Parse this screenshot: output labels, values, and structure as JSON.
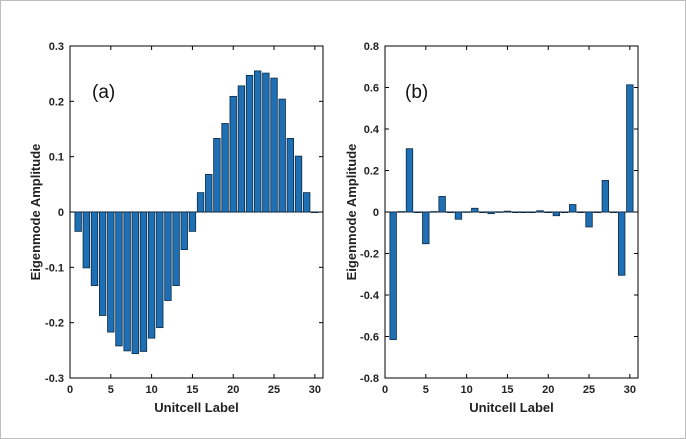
{
  "chart_data": [
    {
      "type": "bar",
      "panel_label": "(a)",
      "xlabel": "Unitcell Label",
      "ylabel": "Eigenmode Amplitude",
      "xlim": [
        0,
        31
      ],
      "ylim": [
        -0.3,
        0.3
      ],
      "xticks": [
        "0",
        "5",
        "10",
        "15",
        "20",
        "25",
        "30"
      ],
      "yticks": [
        "-0.3",
        "-0.2",
        "-0.1",
        "0",
        "0.1",
        "0.2",
        "0.3"
      ],
      "bar_color": "#1f6fb5",
      "x": [
        1,
        2,
        3,
        4,
        5,
        6,
        7,
        8,
        9,
        10,
        11,
        12,
        13,
        14,
        15,
        16,
        17,
        18,
        19,
        20,
        21,
        22,
        23,
        24,
        25,
        26,
        27,
        28,
        29,
        30
      ],
      "values": [
        -0.035,
        -0.101,
        -0.133,
        -0.187,
        -0.217,
        -0.242,
        -0.251,
        -0.256,
        -0.252,
        -0.228,
        -0.209,
        -0.16,
        -0.133,
        -0.068,
        -0.035,
        0.035,
        0.068,
        0.133,
        0.16,
        0.209,
        0.228,
        0.247,
        0.255,
        0.251,
        0.242,
        0.204,
        0.133,
        0.101,
        0.035,
        0.0
      ]
    },
    {
      "type": "bar",
      "panel_label": "(b)",
      "xlabel": "Unitcell Label",
      "ylabel": "Eigenmode Amplitude",
      "xlim": [
        0,
        31
      ],
      "ylim": [
        -0.8,
        0.8
      ],
      "xticks": [
        "0",
        "5",
        "10",
        "15",
        "20",
        "25",
        "30"
      ],
      "yticks": [
        "-0.8",
        "-0.6",
        "-0.4",
        "-0.2",
        "0",
        "0.2",
        "0.4",
        "0.6",
        "0.8"
      ],
      "bar_color": "#1f6fb5",
      "x": [
        1,
        2,
        3,
        4,
        5,
        6,
        7,
        8,
        9,
        10,
        11,
        12,
        13,
        14,
        15,
        16,
        17,
        18,
        19,
        20,
        21,
        22,
        23,
        24,
        25,
        26,
        27,
        28,
        29,
        30
      ],
      "values": [
        -0.615,
        0.002,
        0.305,
        0.0,
        -0.153,
        0.002,
        0.075,
        0.0,
        -0.035,
        0.001,
        0.018,
        0.0,
        -0.008,
        0.001,
        0.004,
        -0.002,
        0.0,
        0.0,
        0.006,
        0.0,
        -0.018,
        0.0,
        0.036,
        0.0,
        -0.072,
        0.0,
        0.152,
        0.0,
        -0.305,
        0.613
      ]
    }
  ]
}
